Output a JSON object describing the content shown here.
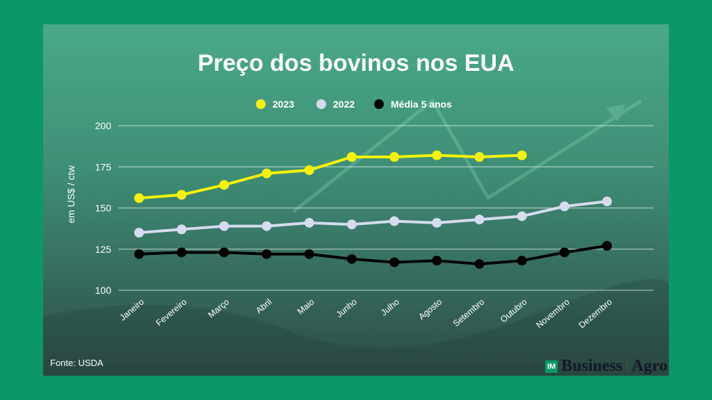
{
  "chart_data": {
    "type": "line",
    "title": "Preço dos bovinos nos EUA",
    "ylabel": "em US$ / ctw",
    "xlabel": "",
    "ylim": [
      100,
      200
    ],
    "yticks": [
      "100",
      "125",
      "150",
      "175",
      "200"
    ],
    "categories": [
      "Janeiro",
      "Fevereiro",
      "Março",
      "Abril",
      "Maio",
      "Junho",
      "Julho",
      "Agosto",
      "Setembro",
      "Outubro",
      "Novembro",
      "Dezembro"
    ],
    "legend_position": "top-center",
    "grid": true,
    "series": [
      {
        "name": "2023",
        "color": "#f5f20a",
        "values": [
          156,
          158,
          164,
          171,
          173,
          181,
          181,
          182,
          181,
          182,
          null,
          null
        ]
      },
      {
        "name": "2022",
        "color": "#d6dcef",
        "values": [
          135,
          137,
          139,
          139,
          141,
          140,
          142,
          141,
          143,
          145,
          151,
          154
        ]
      },
      {
        "name": "Média 5 anos",
        "color": "#000000",
        "values": [
          122,
          123,
          123,
          122,
          122,
          119,
          117,
          118,
          116,
          118,
          123,
          127
        ]
      }
    ]
  },
  "source": "Fonte: USDA",
  "logo": {
    "badge": "IM",
    "brand": "Business",
    "section": "Agro"
  }
}
